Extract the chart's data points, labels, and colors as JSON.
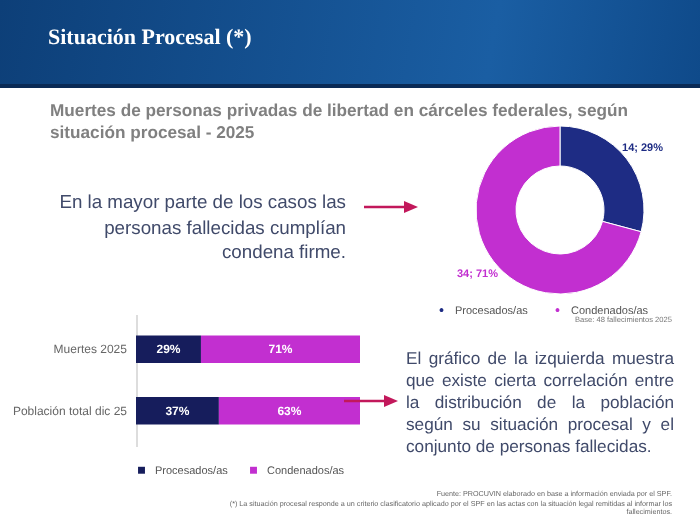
{
  "chart_data": [
    {
      "type": "donut",
      "title": "Situación Procesal (*)",
      "subtitle": "Muertes de personas privadas de libertad en cárceles federales, según situación procesal - 2025",
      "categories": [
        "Procesados/as",
        "Condenados/as"
      ],
      "values": [
        14,
        34
      ],
      "colors": [
        "#1e2c84",
        "#c22fd0"
      ],
      "value_labels": [
        "14; 29%",
        "34; 71%"
      ],
      "legend": "bottom",
      "annotations": [
        "En la mayor parte de los casos las personas fallecidas cumplían condena firme.",
        "Base: 48 fallecimientos 2025"
      ]
    },
    {
      "type": "bar",
      "orientation": "horizontal",
      "stacked": true,
      "categories": [
        "Muertes 2025",
        "Población total dic 25"
      ],
      "series": [
        {
          "name": "Procesados/as",
          "color": "#161d5c",
          "values": [
            29,
            37
          ],
          "value_labels": [
            "29%",
            "37%"
          ]
        },
        {
          "name": "Condenados/as",
          "color": "#c22fd0",
          "values": [
            71,
            63
          ],
          "value_labels": [
            "71%",
            "63%"
          ]
        }
      ],
      "legend": "bottom",
      "tick_labels": "y",
      "annotations": [
        "El gráfico de la izquierda muestra que existe cierta correlación entre la distribución de la población según su situación procesal y el conjunto de personas fallecidas.",
        "Fuente: PROCUVIN elaborado en base a información enviada por el SPF.",
        "(*) La situación procesal responde a un criterio clasificatorio aplicado por el SPF en las actas con la situación legal remitidas al informar los fallecimientos."
      ]
    }
  ]
}
